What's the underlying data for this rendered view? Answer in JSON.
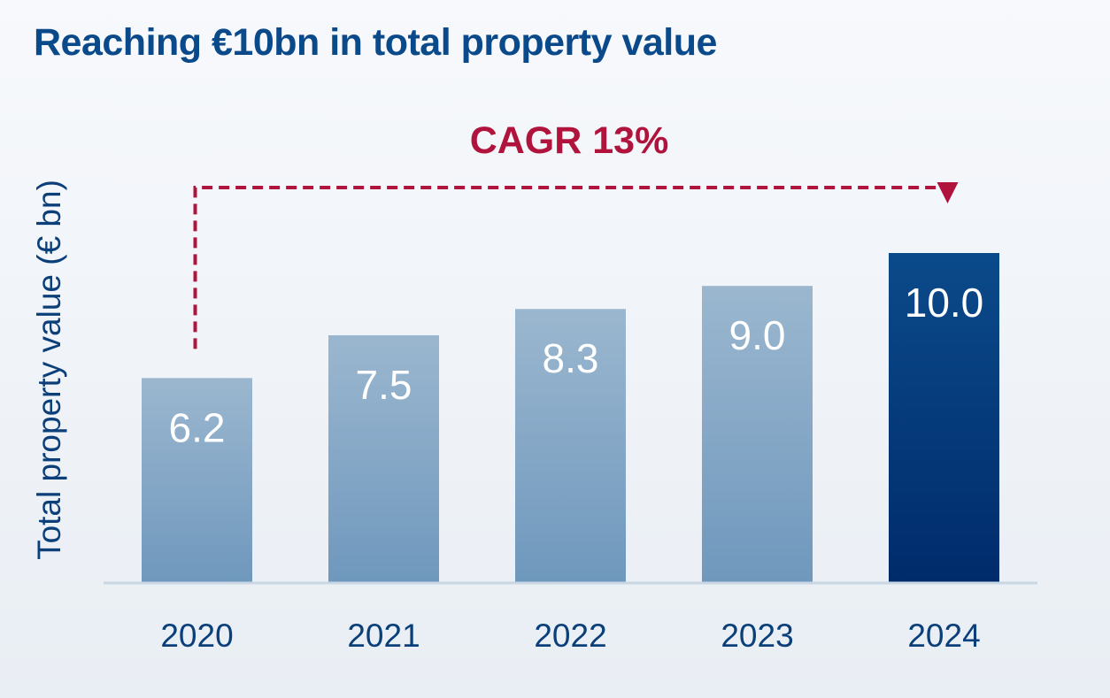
{
  "page": {
    "title": "Reaching €10bn in total property value"
  },
  "chart_data": {
    "type": "bar",
    "title": "Reaching €10bn in total property value",
    "xlabel": "",
    "ylabel": "Total property value (€ bn)",
    "categories": [
      "2020",
      "2021",
      "2022",
      "2023",
      "2024"
    ],
    "values": [
      6.2,
      7.5,
      8.3,
      9.0,
      10.0
    ],
    "value_labels": [
      "6.2",
      "7.5",
      "8.3",
      "9.0",
      "10.0"
    ],
    "highlight_index": 4,
    "ylim": [
      0,
      10.5
    ],
    "grid": false,
    "annotation": {
      "text": "CAGR 13%",
      "from": "2020",
      "to": "2024"
    },
    "colors": {
      "bar_light_top": "#9bb7cf",
      "bar_light_bottom": "#6f98bd",
      "bar_dark_top": "#0b4a8a",
      "bar_dark_bottom": "#002b6b",
      "axis": "#c9d6e3",
      "annotation": "#b0143c",
      "text_dark": "#0b3f7a",
      "title": "#0b4a8a"
    }
  }
}
